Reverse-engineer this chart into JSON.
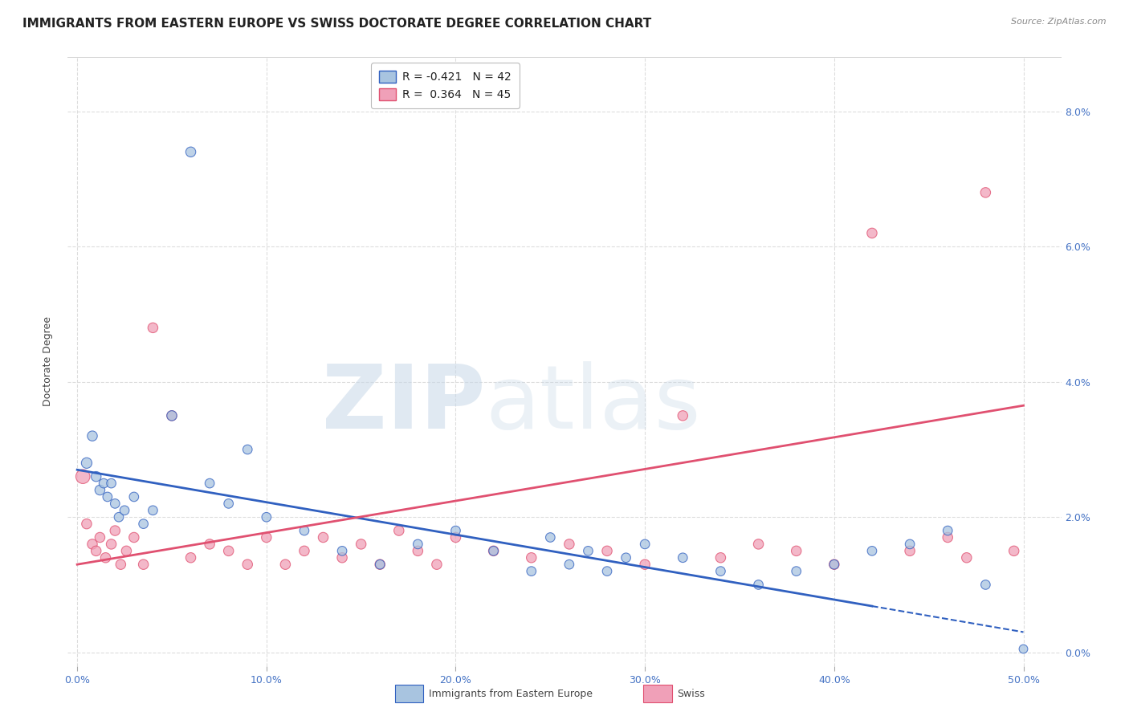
{
  "title": "IMMIGRANTS FROM EASTERN EUROPE VS SWISS DOCTORATE DEGREE CORRELATION CHART",
  "source": "Source: ZipAtlas.com",
  "ylabel": "Doctorate Degree",
  "y_ticks": [
    0.0,
    2.0,
    4.0,
    6.0,
    8.0
  ],
  "x_ticks": [
    0.0,
    10.0,
    20.0,
    30.0,
    40.0,
    50.0
  ],
  "xlim": [
    -0.5,
    52.0
  ],
  "ylim": [
    -0.2,
    8.8
  ],
  "blue_R": -0.421,
  "blue_N": 42,
  "pink_R": 0.364,
  "pink_N": 45,
  "blue_color": "#a8c4e0",
  "pink_color": "#f0a0b8",
  "blue_line_color": "#3060c0",
  "pink_line_color": "#e05070",
  "watermark": "ZIPatlas",
  "blue_scatter_x": [
    0.5,
    0.8,
    1.0,
    1.2,
    1.4,
    1.6,
    1.8,
    2.0,
    2.2,
    2.5,
    3.0,
    3.5,
    4.0,
    5.0,
    6.0,
    8.0,
    10.0,
    12.0,
    14.0,
    16.0,
    18.0,
    20.0,
    22.0,
    24.0,
    25.0,
    26.0,
    27.0,
    28.0,
    29.0,
    30.0,
    32.0,
    34.0,
    36.0,
    38.0,
    40.0,
    42.0,
    44.0,
    46.0,
    48.0,
    50.0,
    7.0,
    9.0
  ],
  "blue_scatter_y": [
    2.8,
    3.2,
    2.6,
    2.4,
    2.5,
    2.3,
    2.5,
    2.2,
    2.0,
    2.1,
    2.3,
    1.9,
    2.1,
    3.5,
    7.4,
    2.2,
    2.0,
    1.8,
    1.5,
    1.3,
    1.6,
    1.8,
    1.5,
    1.2,
    1.7,
    1.3,
    1.5,
    1.2,
    1.4,
    1.6,
    1.4,
    1.2,
    1.0,
    1.2,
    1.3,
    1.5,
    1.6,
    1.8,
    1.0,
    0.05,
    2.5,
    3.0
  ],
  "blue_scatter_sizes": [
    90,
    80,
    80,
    80,
    70,
    70,
    70,
    70,
    70,
    70,
    70,
    70,
    70,
    80,
    80,
    70,
    70,
    70,
    70,
    70,
    70,
    70,
    70,
    70,
    70,
    70,
    70,
    70,
    70,
    70,
    70,
    70,
    70,
    70,
    70,
    70,
    70,
    70,
    70,
    60,
    70,
    70
  ],
  "pink_scatter_x": [
    0.3,
    0.5,
    0.8,
    1.0,
    1.2,
    1.5,
    1.8,
    2.0,
    2.3,
    2.6,
    3.0,
    3.5,
    4.0,
    5.0,
    6.0,
    7.0,
    8.0,
    9.0,
    10.0,
    11.0,
    12.0,
    13.0,
    14.0,
    15.0,
    16.0,
    17.0,
    18.0,
    19.0,
    20.0,
    22.0,
    24.0,
    26.0,
    28.0,
    30.0,
    32.0,
    34.0,
    36.0,
    38.0,
    40.0,
    42.0,
    44.0,
    46.0,
    47.0,
    48.0,
    49.5
  ],
  "pink_scatter_y": [
    2.6,
    1.9,
    1.6,
    1.5,
    1.7,
    1.4,
    1.6,
    1.8,
    1.3,
    1.5,
    1.7,
    1.3,
    4.8,
    3.5,
    1.4,
    1.6,
    1.5,
    1.3,
    1.7,
    1.3,
    1.5,
    1.7,
    1.4,
    1.6,
    1.3,
    1.8,
    1.5,
    1.3,
    1.7,
    1.5,
    1.4,
    1.6,
    1.5,
    1.3,
    3.5,
    1.4,
    1.6,
    1.5,
    1.3,
    6.2,
    1.5,
    1.7,
    1.4,
    6.8,
    1.5
  ],
  "pink_scatter_sizes": [
    160,
    80,
    80,
    80,
    80,
    80,
    80,
    80,
    80,
    80,
    80,
    80,
    80,
    80,
    80,
    80,
    80,
    80,
    80,
    80,
    80,
    80,
    80,
    80,
    80,
    80,
    80,
    80,
    80,
    80,
    80,
    80,
    80,
    80,
    80,
    80,
    80,
    80,
    80,
    80,
    80,
    80,
    80,
    80,
    80
  ],
  "blue_trend_y_start": 2.7,
  "blue_trend_y_end": 0.3,
  "blue_trend_solid_end_x": 42.0,
  "pink_trend_y_start": 1.3,
  "pink_trend_y_end": 3.65,
  "legend_border_color": "#bbbbbb",
  "grid_color": "#dddddd",
  "background_color": "#ffffff",
  "axis_tick_color": "#4472c4",
  "title_fontsize": 11,
  "axis_label_fontsize": 9,
  "tick_fontsize": 9,
  "legend_fontsize": 10
}
